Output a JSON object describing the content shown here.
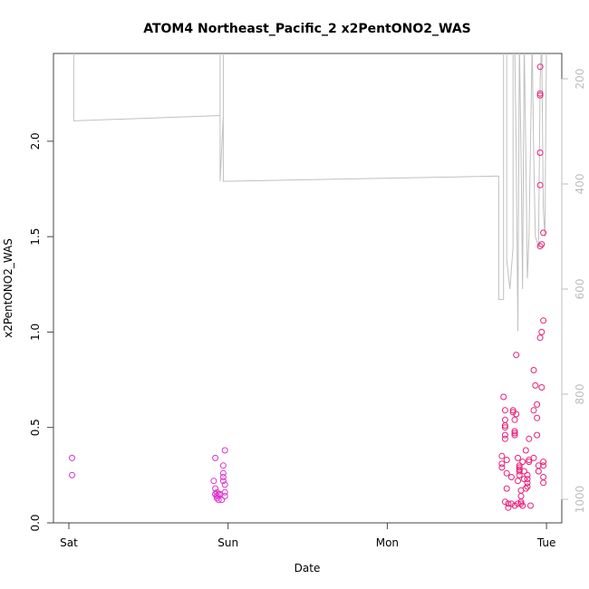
{
  "chart_data": {
    "type": "scatter",
    "title": "ATOM4 Northeast_Pacific_2 x2PentONO2_WAS",
    "xlabel": "Date",
    "ylabel": "x2PentONO2_WAS",
    "x_ticks": [
      {
        "day": 0,
        "label": "Sat"
      },
      {
        "day": 1,
        "label": "Sun"
      },
      {
        "day": 2,
        "label": "Mon"
      },
      {
        "day": 3,
        "label": "Tue"
      }
    ],
    "xlim_days": [
      -0.13,
      3.09
    ],
    "ylim": [
      0,
      2.46
    ],
    "y_ticks": [
      0.0,
      0.5,
      1.0,
      1.5,
      2.0
    ],
    "y_tick_labels": [
      "0.0",
      "0.5",
      "1.0",
      "1.5",
      "2.0"
    ],
    "y2_ticks": [
      200,
      400,
      600,
      800,
      1000
    ],
    "y2_tick_labels": [
      "200",
      "400",
      "600",
      "800",
      "1000"
    ],
    "y2lim_reversed": [
      1008,
      130
    ],
    "series": [
      {
        "kind": "line",
        "axis": "right",
        "color": "#c0c0c0",
        "points": [
          [
            0.03,
            130
          ],
          [
            0.03,
            280
          ],
          [
            0.93,
            270
          ],
          [
            0.95,
            270
          ],
          [
            0.95,
            130
          ],
          [
            0.95,
            395
          ],
          [
            0.95,
            395
          ],
          [
            0.97,
            270
          ],
          [
            0.97,
            130
          ],
          [
            0.97,
            395
          ],
          [
            0.97,
            395
          ],
          [
            2.7,
            385
          ],
          [
            2.7,
            520
          ],
          [
            2.7,
            620
          ],
          [
            2.73,
            620
          ],
          [
            2.73,
            520
          ],
          [
            2.73,
            130
          ],
          [
            2.73,
            130
          ],
          [
            2.75,
            130
          ],
          [
            2.75,
            545
          ],
          [
            2.77,
            600
          ],
          [
            2.79,
            520
          ],
          [
            2.79,
            130
          ],
          [
            2.8,
            130
          ],
          [
            2.81,
            345
          ],
          [
            2.82,
            680
          ],
          [
            2.83,
            130
          ],
          [
            2.84,
            345
          ],
          [
            2.85,
            600
          ],
          [
            2.86,
            130
          ],
          [
            2.87,
            345
          ],
          [
            2.88,
            580
          ],
          [
            2.89,
            500
          ],
          [
            2.91,
            130
          ],
          [
            2.92,
            345
          ],
          [
            2.93,
            500
          ],
          [
            2.95,
            520
          ],
          [
            2.96,
            200
          ],
          [
            2.97,
            130
          ],
          [
            2.98,
            450
          ],
          [
            2.99,
            500
          ],
          [
            3.0,
            130
          ]
        ]
      },
      {
        "kind": "points",
        "axis": "left",
        "color": "#e8207a",
        "points": [
          [
            0.02,
            0.34
          ],
          [
            0.02,
            0.25
          ],
          [
            0.92,
            0.34
          ],
          [
            0.91,
            0.22
          ],
          [
            0.92,
            0.15
          ],
          [
            0.92,
            0.18
          ],
          [
            0.92,
            0.15
          ],
          [
            0.93,
            0.14
          ],
          [
            0.93,
            0.13
          ],
          [
            0.93,
            0.16
          ],
          [
            0.94,
            0.15
          ],
          [
            0.94,
            0.12
          ],
          [
            0.95,
            0.15
          ],
          [
            0.96,
            0.12
          ],
          [
            0.97,
            0.3
          ],
          [
            0.97,
            0.26
          ],
          [
            0.97,
            0.24
          ],
          [
            0.97,
            0.22
          ],
          [
            0.98,
            0.2
          ],
          [
            0.98,
            0.16
          ],
          [
            0.98,
            0.14
          ],
          [
            0.98,
            0.38
          ],
          [
            2.72,
            0.35
          ],
          [
            2.72,
            0.31
          ],
          [
            2.72,
            0.29
          ],
          [
            2.73,
            0.66
          ],
          [
            2.74,
            0.59
          ],
          [
            2.74,
            0.54
          ],
          [
            2.74,
            0.51
          ],
          [
            2.74,
            0.5
          ],
          [
            2.74,
            0.46
          ],
          [
            2.74,
            0.44
          ],
          [
            2.75,
            0.33
          ],
          [
            2.75,
            0.26
          ],
          [
            2.75,
            0.18
          ],
          [
            2.74,
            0.11
          ],
          [
            2.76,
            0.1
          ],
          [
            2.76,
            0.08
          ],
          [
            2.78,
            0.24
          ],
          [
            2.78,
            0.1
          ],
          [
            2.79,
            0.59
          ],
          [
            2.79,
            0.58
          ],
          [
            2.8,
            0.54
          ],
          [
            2.8,
            0.48
          ],
          [
            2.8,
            0.47
          ],
          [
            2.8,
            0.46
          ],
          [
            2.81,
            0.57
          ],
          [
            2.81,
            0.88
          ],
          [
            2.8,
            0.09
          ],
          [
            2.82,
            0.1
          ],
          [
            2.82,
            0.22
          ],
          [
            2.82,
            0.34
          ],
          [
            2.83,
            0.3
          ],
          [
            2.83,
            0.29
          ],
          [
            2.83,
            0.28
          ],
          [
            2.83,
            0.27
          ],
          [
            2.83,
            0.25
          ],
          [
            2.84,
            0.17
          ],
          [
            2.84,
            0.14
          ],
          [
            2.84,
            0.11
          ],
          [
            2.84,
            0.1
          ],
          [
            2.85,
            0.09
          ],
          [
            2.85,
            0.32
          ],
          [
            2.86,
            0.27
          ],
          [
            2.86,
            0.23
          ],
          [
            2.87,
            0.18
          ],
          [
            2.87,
            0.38
          ],
          [
            2.88,
            0.25
          ],
          [
            2.88,
            0.23
          ],
          [
            2.88,
            0.21
          ],
          [
            2.88,
            0.19
          ],
          [
            2.89,
            0.32
          ],
          [
            2.89,
            0.33
          ],
          [
            2.89,
            0.44
          ],
          [
            2.9,
            0.09
          ],
          [
            2.92,
            0.34
          ],
          [
            2.92,
            0.8
          ],
          [
            2.92,
            0.59
          ],
          [
            2.93,
            0.72
          ],
          [
            2.94,
            0.62
          ],
          [
            2.94,
            0.55
          ],
          [
            2.94,
            0.46
          ],
          [
            2.95,
            0.3
          ],
          [
            2.95,
            0.27
          ],
          [
            2.96,
            0.97
          ],
          [
            2.97,
            1.0
          ],
          [
            2.96,
            1.45
          ],
          [
            2.96,
            1.77
          ],
          [
            2.96,
            1.94
          ],
          [
            2.96,
            2.39
          ],
          [
            2.96,
            2.25
          ],
          [
            2.96,
            2.24
          ],
          [
            2.98,
            1.52
          ],
          [
            2.97,
            1.46
          ],
          [
            2.98,
            1.06
          ],
          [
            2.97,
            0.71
          ],
          [
            2.98,
            0.32
          ],
          [
            2.98,
            0.3
          ],
          [
            2.98,
            0.24
          ],
          [
            2.98,
            0.21
          ]
        ]
      }
    ],
    "colors": {
      "frame": "#444444",
      "line": "#c0c0c0",
      "points_primary": "#e8207a",
      "points_secondary": "#dd33cc",
      "right_axis": "#bdbdbd"
    },
    "grid": false,
    "legend": "none"
  }
}
